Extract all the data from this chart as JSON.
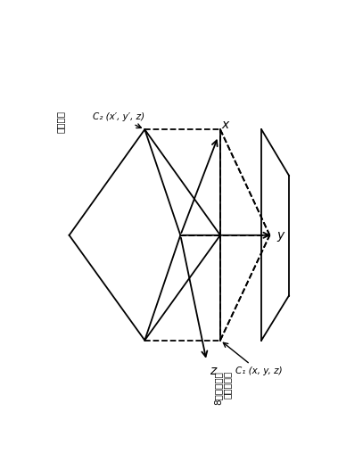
{
  "bg": "#ffffff",
  "lc": "#000000",
  "label_x": "x",
  "label_y": "y",
  "label_z": "z",
  "label_C2": "C₂ (x′, y′, z)",
  "label_C1": "C₁ (x, y, z)",
  "label_cn_top": "超导线圈",
  "label_cn_bot1": "8字线圈的一",
  "label_cn_bot2": "个矩形回路",
  "fig_w": 3.79,
  "fig_h": 5.17,
  "dpi": 100
}
